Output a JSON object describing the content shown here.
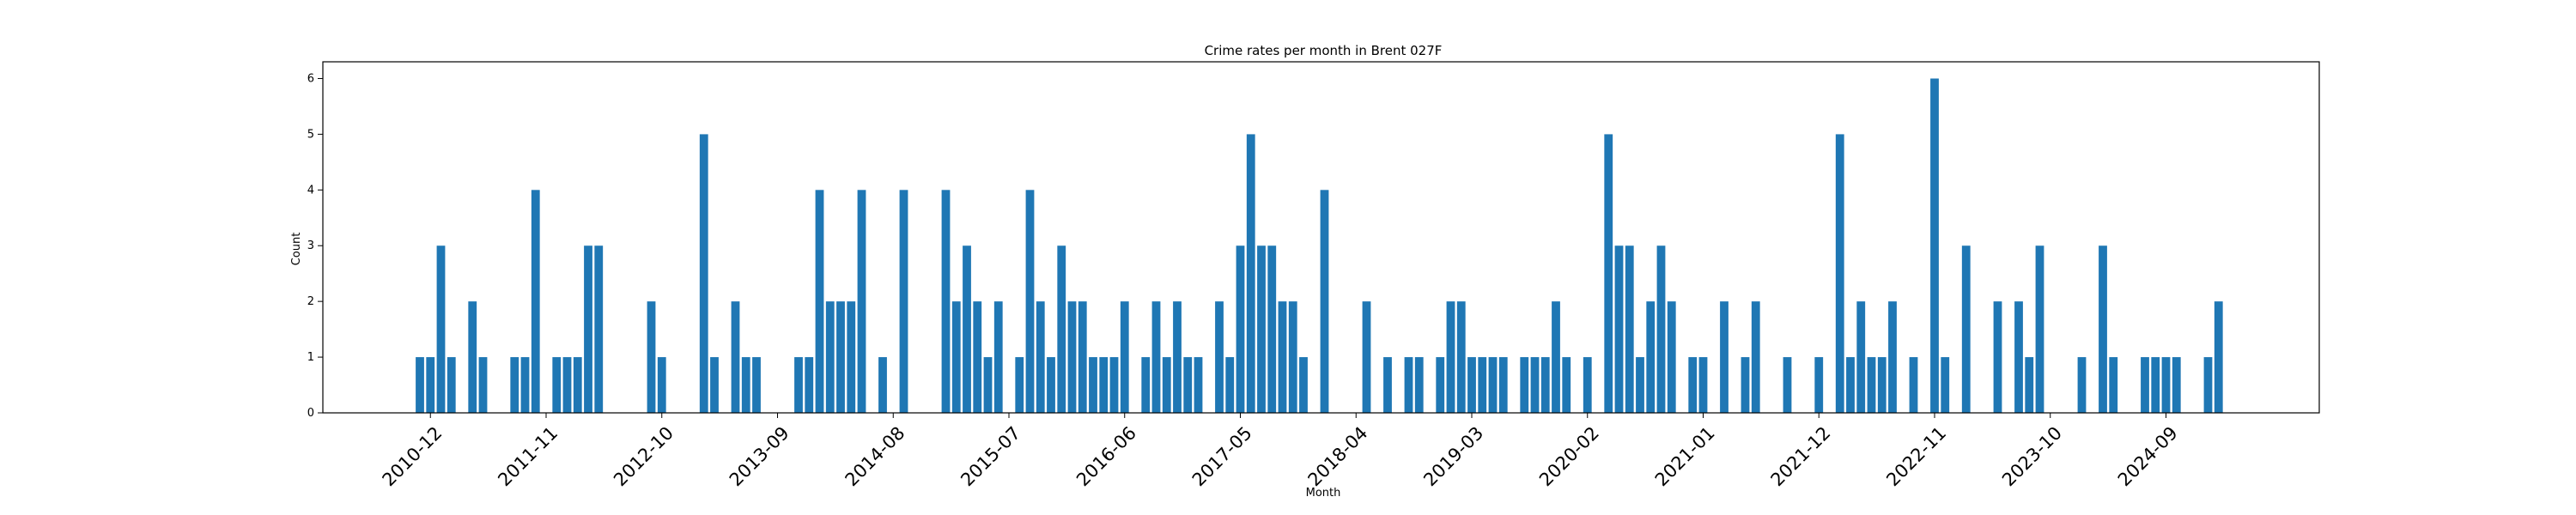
{
  "chart_data": {
    "type": "bar",
    "title": "Crime rates per month in Brent 027F",
    "xlabel": "Month",
    "ylabel": "Count",
    "ylim": [
      0,
      6.3
    ],
    "yticks": [
      "0",
      "1",
      "2",
      "3",
      "4",
      "5",
      "6"
    ],
    "xtick_labels": [
      "2010-12",
      "2011-11",
      "2012-10",
      "2013-09",
      "2014-08",
      "2015-07",
      "2016-06",
      "2017-05",
      "2018-04",
      "2019-03",
      "2020-02",
      "2021-01",
      "2021-12",
      "2022-11",
      "2023-10",
      "2024-09"
    ],
    "grid": false,
    "bar_color": "#1f77b4",
    "bars": [
      {
        "x": "2010-11",
        "y": 1
      },
      {
        "x": "2010-12",
        "y": 1
      },
      {
        "x": "2011-01",
        "y": 3
      },
      {
        "x": "2011-02",
        "y": 1
      },
      {
        "x": "2011-04",
        "y": 2
      },
      {
        "x": "2011-05",
        "y": 1
      },
      {
        "x": "2011-08",
        "y": 1
      },
      {
        "x": "2011-09",
        "y": 1
      },
      {
        "x": "2011-10",
        "y": 4
      },
      {
        "x": "2011-12",
        "y": 1
      },
      {
        "x": "2012-01",
        "y": 1
      },
      {
        "x": "2012-02",
        "y": 1
      },
      {
        "x": "2012-03",
        "y": 3
      },
      {
        "x": "2012-04",
        "y": 3
      },
      {
        "x": "2012-09",
        "y": 2
      },
      {
        "x": "2012-10",
        "y": 1
      },
      {
        "x": "2013-02",
        "y": 5
      },
      {
        "x": "2013-03",
        "y": 1
      },
      {
        "x": "2013-05",
        "y": 2
      },
      {
        "x": "2013-06",
        "y": 1
      },
      {
        "x": "2013-07",
        "y": 1
      },
      {
        "x": "2013-11",
        "y": 1
      },
      {
        "x": "2013-12",
        "y": 1
      },
      {
        "x": "2014-01",
        "y": 4
      },
      {
        "x": "2014-02",
        "y": 2
      },
      {
        "x": "2014-03",
        "y": 2
      },
      {
        "x": "2014-04",
        "y": 2
      },
      {
        "x": "2014-05",
        "y": 4
      },
      {
        "x": "2014-07",
        "y": 1
      },
      {
        "x": "2014-09",
        "y": 4
      },
      {
        "x": "2015-01",
        "y": 4
      },
      {
        "x": "2015-02",
        "y": 2
      },
      {
        "x": "2015-03",
        "y": 3
      },
      {
        "x": "2015-04",
        "y": 2
      },
      {
        "x": "2015-05",
        "y": 1
      },
      {
        "x": "2015-06",
        "y": 2
      },
      {
        "x": "2015-08",
        "y": 1
      },
      {
        "x": "2015-09",
        "y": 4
      },
      {
        "x": "2015-10",
        "y": 2
      },
      {
        "x": "2015-11",
        "y": 1
      },
      {
        "x": "2015-12",
        "y": 3
      },
      {
        "x": "2016-01",
        "y": 2
      },
      {
        "x": "2016-02",
        "y": 2
      },
      {
        "x": "2016-03",
        "y": 1
      },
      {
        "x": "2016-04",
        "y": 1
      },
      {
        "x": "2016-05",
        "y": 1
      },
      {
        "x": "2016-06",
        "y": 2
      },
      {
        "x": "2016-08",
        "y": 1
      },
      {
        "x": "2016-09",
        "y": 2
      },
      {
        "x": "2016-10",
        "y": 1
      },
      {
        "x": "2016-11",
        "y": 2
      },
      {
        "x": "2016-12",
        "y": 1
      },
      {
        "x": "2017-01",
        "y": 1
      },
      {
        "x": "2017-03",
        "y": 2
      },
      {
        "x": "2017-04",
        "y": 1
      },
      {
        "x": "2017-05",
        "y": 3
      },
      {
        "x": "2017-06",
        "y": 5
      },
      {
        "x": "2017-07",
        "y": 3
      },
      {
        "x": "2017-08",
        "y": 3
      },
      {
        "x": "2017-09",
        "y": 2
      },
      {
        "x": "2017-10",
        "y": 2
      },
      {
        "x": "2017-11",
        "y": 1
      },
      {
        "x": "2018-01",
        "y": 4
      },
      {
        "x": "2018-05",
        "y": 2
      },
      {
        "x": "2018-07",
        "y": 1
      },
      {
        "x": "2018-09",
        "y": 1
      },
      {
        "x": "2018-10",
        "y": 1
      },
      {
        "x": "2018-12",
        "y": 1
      },
      {
        "x": "2019-01",
        "y": 2
      },
      {
        "x": "2019-02",
        "y": 2
      },
      {
        "x": "2019-03",
        "y": 1
      },
      {
        "x": "2019-04",
        "y": 1
      },
      {
        "x": "2019-05",
        "y": 1
      },
      {
        "x": "2019-06",
        "y": 1
      },
      {
        "x": "2019-08",
        "y": 1
      },
      {
        "x": "2019-09",
        "y": 1
      },
      {
        "x": "2019-10",
        "y": 1
      },
      {
        "x": "2019-11",
        "y": 2
      },
      {
        "x": "2019-12",
        "y": 1
      },
      {
        "x": "2020-02",
        "y": 1
      },
      {
        "x": "2020-04",
        "y": 5
      },
      {
        "x": "2020-05",
        "y": 3
      },
      {
        "x": "2020-06",
        "y": 3
      },
      {
        "x": "2020-07",
        "y": 1
      },
      {
        "x": "2020-08",
        "y": 2
      },
      {
        "x": "2020-09",
        "y": 3
      },
      {
        "x": "2020-10",
        "y": 2
      },
      {
        "x": "2020-12",
        "y": 1
      },
      {
        "x": "2021-01",
        "y": 1
      },
      {
        "x": "2021-03",
        "y": 2
      },
      {
        "x": "2021-05",
        "y": 1
      },
      {
        "x": "2021-06",
        "y": 2
      },
      {
        "x": "2021-09",
        "y": 1
      },
      {
        "x": "2021-12",
        "y": 1
      },
      {
        "x": "2022-02",
        "y": 5
      },
      {
        "x": "2022-03",
        "y": 1
      },
      {
        "x": "2022-04",
        "y": 2
      },
      {
        "x": "2022-05",
        "y": 1
      },
      {
        "x": "2022-06",
        "y": 1
      },
      {
        "x": "2022-07",
        "y": 2
      },
      {
        "x": "2022-09",
        "y": 1
      },
      {
        "x": "2022-11",
        "y": 6
      },
      {
        "x": "2022-12",
        "y": 1
      },
      {
        "x": "2023-02",
        "y": 3
      },
      {
        "x": "2023-05",
        "y": 2
      },
      {
        "x": "2023-07",
        "y": 2
      },
      {
        "x": "2023-08",
        "y": 1
      },
      {
        "x": "2023-09",
        "y": 3
      },
      {
        "x": "2024-01",
        "y": 1
      },
      {
        "x": "2024-03",
        "y": 3
      },
      {
        "x": "2024-04",
        "y": 1
      },
      {
        "x": "2024-07",
        "y": 1
      },
      {
        "x": "2024-08",
        "y": 1
      },
      {
        "x": "2024-09",
        "y": 1
      },
      {
        "x": "2024-10",
        "y": 1
      },
      {
        "x": "2025-01",
        "y": 1
      },
      {
        "x": "2025-02",
        "y": 2
      }
    ]
  }
}
